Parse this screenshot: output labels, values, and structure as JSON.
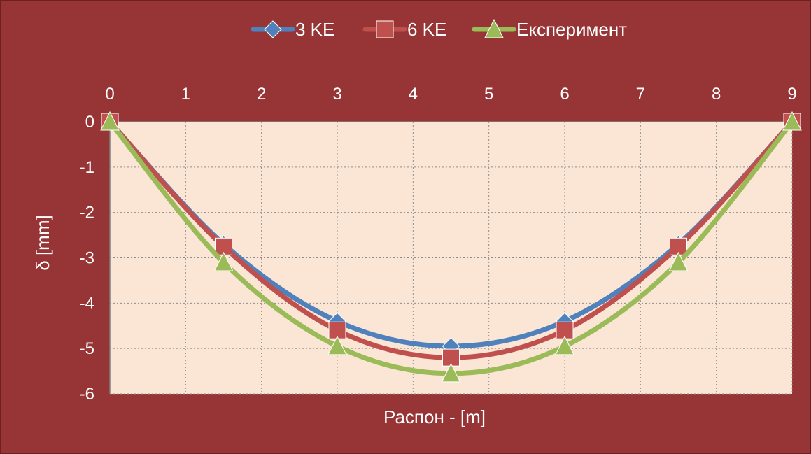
{
  "chart_data": {
    "type": "line",
    "title": "",
    "xlabel": "Распон - [m]",
    "ylabel": "δ  [mm]",
    "x_ticks": [
      "0",
      "1",
      "2",
      "3",
      "4",
      "5",
      "6",
      "7",
      "8",
      "9"
    ],
    "y_ticks": [
      "0",
      "-1",
      "-2",
      "-3",
      "-4",
      "-5",
      "-6"
    ],
    "xlim": [
      0,
      9
    ],
    "ylim": [
      -6,
      0
    ],
    "grid": true,
    "legend_position": "top-center",
    "x": [
      0,
      1.5,
      3,
      4.5,
      6,
      7.5,
      9
    ],
    "series": [
      {
        "name": "3 KE",
        "marker": "diamond",
        "color": "#4f81bd",
        "values": [
          0,
          -2.7,
          -4.4,
          -4.95,
          -4.4,
          -2.7,
          0
        ]
      },
      {
        "name": "6 KE",
        "marker": "square",
        "color": "#c0504d",
        "values": [
          0,
          -2.75,
          -4.6,
          -5.2,
          -4.6,
          -2.75,
          0
        ]
      },
      {
        "name": "Експеримент",
        "marker": "triangle",
        "color": "#9bbb59",
        "values": [
          0,
          -3.1,
          -4.95,
          -5.55,
          -4.95,
          -3.1,
          0
        ]
      }
    ]
  },
  "colors": {
    "background": "#973536",
    "plot_area": "#fbe6d5",
    "grid": "#8c8c8c",
    "text": "#ffffff"
  }
}
